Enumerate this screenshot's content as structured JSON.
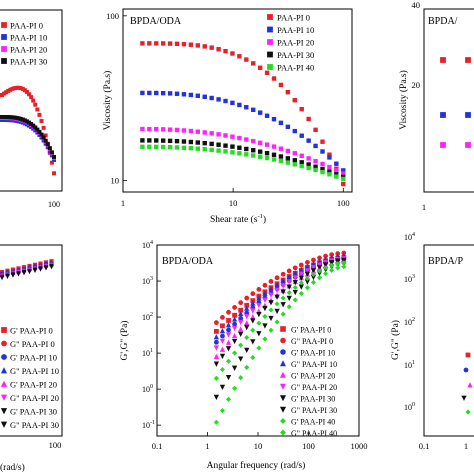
{
  "chart_data": [
    {
      "panel": "top-left-partial",
      "type": "line",
      "x_ticks": [
        "100"
      ],
      "series": [
        {
          "name": "PAA-PI 0",
          "color": "#e8202a",
          "marker": "square"
        },
        {
          "name": "PAA-PI 10",
          "color": "#2233dd",
          "marker": "square"
        },
        {
          "name": "PAA-PI 20",
          "color": "#ff22ff",
          "marker": "square"
        },
        {
          "name": "PAA-PI 30",
          "color": "#111111",
          "marker": "square"
        }
      ]
    },
    {
      "panel": "top-center",
      "type": "scatter",
      "title": "BPDA/ODA",
      "xlabel": "Shear rate (s",
      "xlabel_sup": "-1",
      "xlabel_end": ")",
      "ylabel": "Viscosity (Pa.s)",
      "xscale": "log",
      "yscale": "log",
      "xlim": [
        1,
        120
      ],
      "ylim": [
        8.5,
        110
      ],
      "x_ticks": [
        "1",
        "10",
        "100"
      ],
      "y_ticks": [
        "10",
        "100"
      ],
      "legend_position": "top-right",
      "series": [
        {
          "name": "PAA-PI 0",
          "color": "#e8202a",
          "marker": "square",
          "y_start": 68,
          "y_end": 9.5,
          "decay_strength": 1.9
        },
        {
          "name": "PAA-PI 10",
          "color": "#2233dd",
          "marker": "square",
          "y_start": 34,
          "y_end": 11.5,
          "decay_strength": 1.3
        },
        {
          "name": "PAA-PI 20",
          "color": "#ff22ff",
          "marker": "square",
          "y_start": 20.5,
          "y_end": 11.0,
          "decay_strength": 1.0
        },
        {
          "name": "PAA-PI 30",
          "color": "#111111",
          "marker": "square",
          "y_start": 17.5,
          "y_end": 10.5,
          "decay_strength": 1.0
        },
        {
          "name": "PAA-PI 40",
          "color": "#22dd22",
          "marker": "square",
          "y_start": 16,
          "y_end": 10.2,
          "decay_strength": 1.0
        }
      ]
    },
    {
      "panel": "top-right-partial",
      "type": "scatter",
      "title": "BPDA/",
      "ylabel": "Viscosity (Pa.s)",
      "y_ticks": [
        "40",
        "20"
      ],
      "x_ticks": [
        "1"
      ],
      "series": [
        {
          "name": "PAA-PI 0",
          "color": "#e8202a",
          "marker": "square"
        },
        {
          "name": "PAA-PI 10",
          "color": "#2233dd",
          "marker": "square"
        },
        {
          "name": "PAA-PI 20",
          "color": "#ff22ff",
          "marker": "square"
        }
      ]
    },
    {
      "panel": "bottom-left-partial",
      "type": "scatter",
      "xlabel": "(rad/s)",
      "x_ticks": [
        "100"
      ],
      "legend": [
        "G' PAA-PI 0",
        "G\" PAA-PI 0",
        "G' PAA-PI 10",
        "G\" PAA-PI 10",
        "G' PAA-PI 20",
        "G\" PAA-PI 20",
        "G' PAA-PI 30",
        "G\" PAA-PI 30"
      ]
    },
    {
      "panel": "bottom-center",
      "type": "scatter",
      "title": "BPDA/ODA",
      "xlabel": "Angular frequency (rad/s)",
      "ylabel": "G',G\" (Pa)",
      "xscale": "log",
      "yscale": "log",
      "xlim": [
        0.1,
        1000
      ],
      "ylim": [
        0.05,
        10000
      ],
      "x_ticks": [
        "0.1",
        "1",
        "10",
        "100",
        "1000"
      ],
      "y_ticks": [
        {
          "base": "10",
          "exp": "-1"
        },
        {
          "base": "10",
          "exp": "0"
        },
        {
          "base": "10",
          "exp": "1"
        },
        {
          "base": "10",
          "exp": "2"
        },
        {
          "base": "10",
          "exp": "3"
        },
        {
          "base": "10",
          "exp": "4"
        }
      ],
      "legend_position": "bottom-right",
      "series": [
        {
          "name": "G' PAA-PI 0",
          "color": "#e8202a",
          "marker": "square",
          "y_start": 40,
          "y_end": 4500
        },
        {
          "name": "G\" PAA-PI 0",
          "color": "#e8202a",
          "marker": "circle",
          "y_start": 70,
          "y_end": 6000
        },
        {
          "name": "G' PAA-PI 10",
          "color": "#2233dd",
          "marker": "circle",
          "y_start": 20,
          "y_end": 4000
        },
        {
          "name": "G\" PAA-PI 10",
          "color": "#2233dd",
          "marker": "triangle",
          "y_start": 28,
          "y_end": 5000
        },
        {
          "name": "G' PAA-PI 20",
          "color": "#ff22ff",
          "marker": "triangle",
          "y_start": 8,
          "y_end": 3500
        },
        {
          "name": "G\" PAA-PI 20",
          "color": "#ff22ff",
          "marker": "triangle-down",
          "y_start": 14,
          "y_end": 4200
        },
        {
          "name": "G' PAA-PI 30",
          "color": "#111111",
          "marker": "triangle-down",
          "y_start": 0.6,
          "y_end": 3000
        },
        {
          "name": "G\" PAA-PI 30",
          "color": "#111111",
          "marker": "triangle-down",
          "y_start": 5,
          "y_end": 3800
        },
        {
          "name": "G' PAA-PI 40",
          "color": "#22dd22",
          "marker": "diamond",
          "y_start": 0.12,
          "y_end": 2500
        },
        {
          "name": "G\" PAA-PI 40",
          "color": "#22dd22",
          "marker": "diamond",
          "y_start": 2,
          "y_end": 3200
        }
      ]
    },
    {
      "panel": "bottom-right-partial",
      "type": "scatter",
      "title": "BPDA/P",
      "ylabel": "G',G\" (Pa)",
      "x_ticks": [
        "0.1",
        "1"
      ],
      "y_ticks": [
        {
          "base": "10",
          "exp": "4"
        },
        {
          "base": "10",
          "exp": "3"
        },
        {
          "base": "10",
          "exp": "2"
        },
        {
          "base": "10",
          "exp": "1"
        },
        {
          "base": "10",
          "exp": "0"
        }
      ]
    }
  ]
}
